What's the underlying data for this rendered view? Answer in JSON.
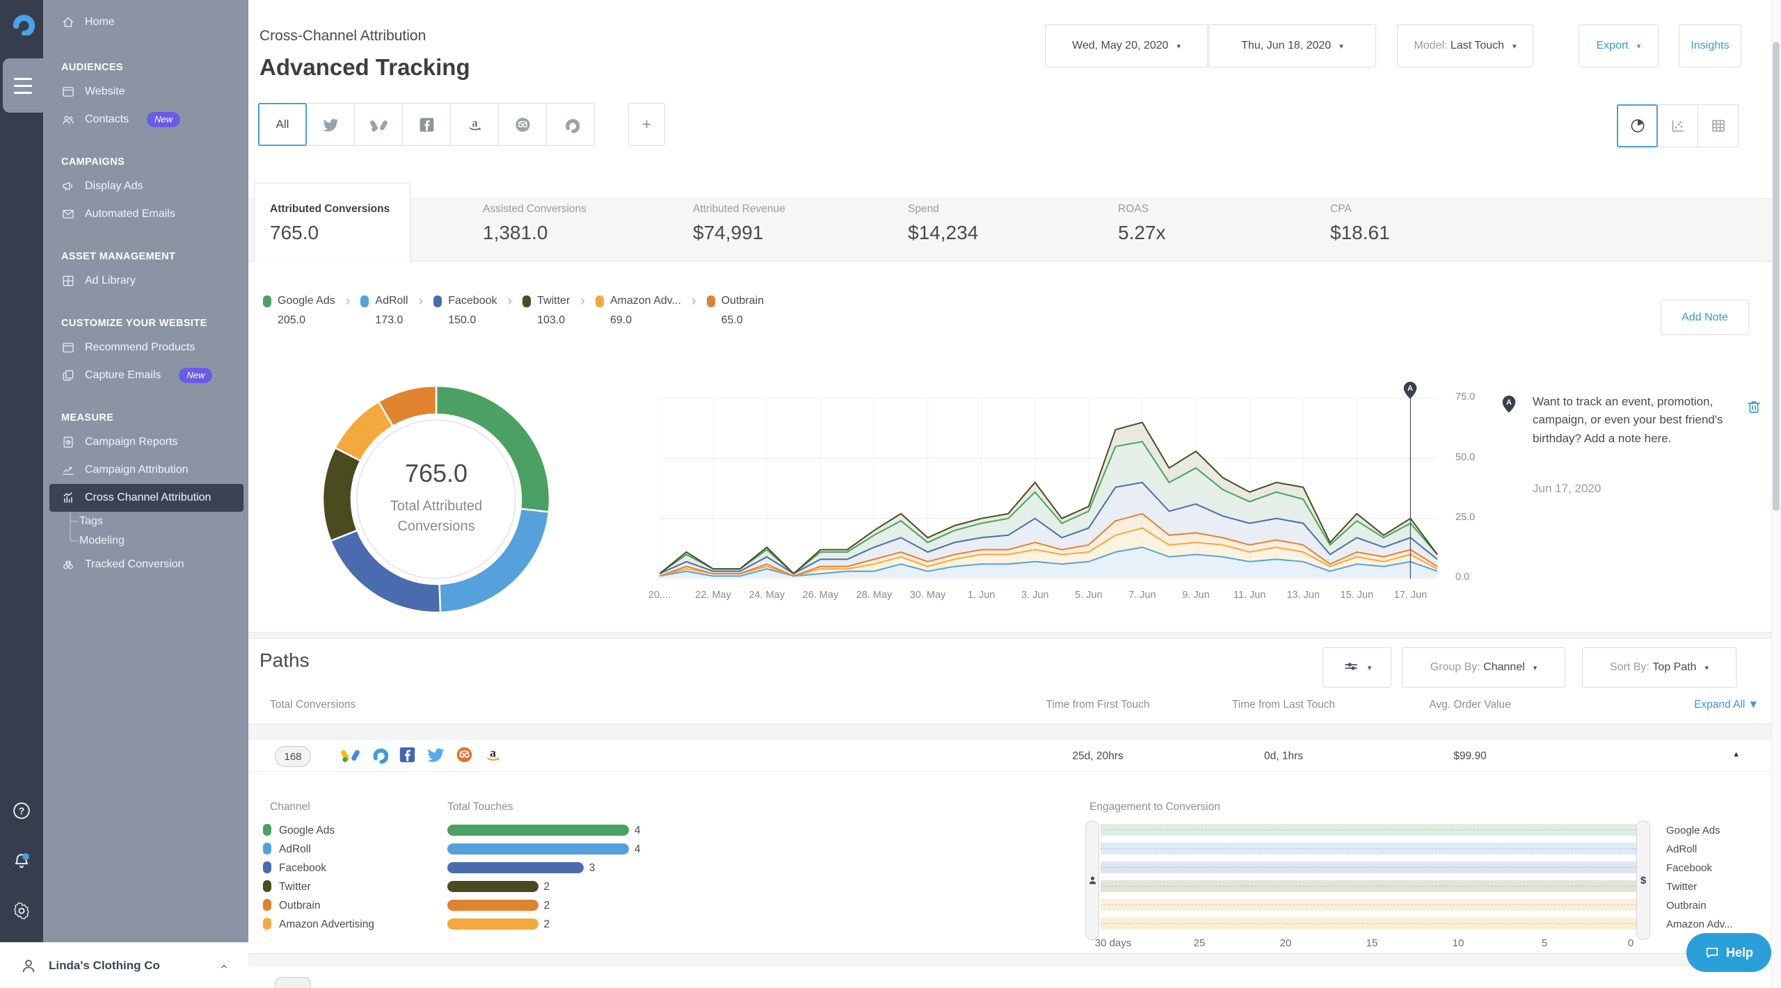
{
  "accent": "#3b96dd",
  "sidebar": {
    "sections": [
      {
        "header": null,
        "items": [
          {
            "icon": "home",
            "label": "Home"
          }
        ]
      },
      {
        "header": "AUDIENCES",
        "items": [
          {
            "icon": "browser-window",
            "label": "Website"
          },
          {
            "icon": "contacts",
            "label": "Contacts",
            "badge": "New"
          }
        ]
      },
      {
        "header": "CAMPAIGNS",
        "items": [
          {
            "icon": "megaphone",
            "label": "Display Ads"
          },
          {
            "icon": "envelope",
            "label": "Automated Emails"
          }
        ]
      },
      {
        "header": "ASSET MANAGEMENT",
        "items": [
          {
            "icon": "grid",
            "label": "Ad Library"
          }
        ]
      },
      {
        "header": "CUSTOMIZE YOUR WEBSITE",
        "items": [
          {
            "icon": "browser-window",
            "label": "Recommend Products"
          },
          {
            "icon": "pages",
            "label": "Capture Emails",
            "badge": "New"
          }
        ]
      },
      {
        "header": "MEASURE",
        "items": [
          {
            "icon": "report",
            "label": "Campaign Reports"
          },
          {
            "icon": "chart-line",
            "label": "Campaign Attribution"
          },
          {
            "icon": "bar-chart",
            "label": "Cross Channel Attribution",
            "selected": true,
            "children": [
              "Tags",
              "Modeling"
            ]
          },
          {
            "icon": "binoculars",
            "label": "Tracked Conversion"
          }
        ]
      }
    ],
    "footer_icons": [
      "help",
      "notifications",
      "settings"
    ],
    "account_name": "Linda's Clothing Co"
  },
  "header": {
    "subtitle": "Cross-Channel Attribution",
    "title": "Advanced Tracking",
    "date_start": "Wed, May 20, 2020",
    "date_end": "Thu, Jun 18, 2020",
    "model_label": "Model:",
    "model_value": "Last Touch",
    "export_label": "Export",
    "insights_label": "Insights"
  },
  "channel_tabs": {
    "all_label": "All",
    "icons": [
      "twitter",
      "google-ads",
      "facebook",
      "amazon",
      "outbrain",
      "adroll"
    ],
    "add_label": "+"
  },
  "view_toggles": [
    "pie-chart",
    "scatter-chart",
    "table-grid"
  ],
  "metrics": [
    {
      "label": "Attributed Conversions",
      "value": "765.0",
      "selected": true
    },
    {
      "label": "Assisted Conversions",
      "value": "1,381.0"
    },
    {
      "label": "Attributed Revenue",
      "value": "$74,991"
    },
    {
      "label": "Spend",
      "value": "$14,234"
    },
    {
      "label": "ROAS",
      "value": "5.27x"
    },
    {
      "label": "CPA",
      "value": "$18.61"
    }
  ],
  "breadcrumb": {
    "items": [
      {
        "name": "Google Ads",
        "value": "205.0",
        "color": "#4ba164"
      },
      {
        "name": "AdRoll",
        "value": "173.0",
        "color": "#55a1db"
      },
      {
        "name": "Facebook",
        "value": "150.0",
        "color": "#4a6bae"
      },
      {
        "name": "Twitter",
        "value": "103.0",
        "color": "#4b4b20"
      },
      {
        "name": "Amazon Adv...",
        "value": "69.0",
        "color": "#f4a93c"
      },
      {
        "name": "Outbrain",
        "value": "65.0",
        "color": "#e0832f"
      }
    ],
    "add_note_label": "Add Note"
  },
  "note": {
    "pin_label": "A",
    "text": "Want to track an event, promotion, campaign, or even your best friend's birthday? Add a note here.",
    "date": "Jun 17, 2020"
  },
  "paths": {
    "title": "Paths",
    "group_by_label": "Group By:",
    "group_by_value": "Channel",
    "sort_by_label": "Sort By:",
    "sort_by_value": "Top Path",
    "columns": {
      "c1": "Total Conversions",
      "c2": "Time from First Touch",
      "c3": "Time from Last Touch",
      "c4": "Avg. Order Value"
    },
    "expand_all_label": "Expand All ▼",
    "row": {
      "badge": "168",
      "icons": [
        "google-ads",
        "adroll",
        "facebook",
        "twitter",
        "outbrain",
        "amazon"
      ],
      "time_first": "25d, 20hrs",
      "time_last": "0d, 1hrs",
      "avg_order": "$99.90"
    },
    "expanded": {
      "channel_header": "Channel",
      "touches_header": "Total Touches",
      "engagement_title": "Engagement to Conversion"
    }
  },
  "help_label": "Help",
  "chart_data": [
    {
      "type": "pie",
      "title": "Total Attributed Conversions",
      "center_value": "765.0",
      "center_label": "Total Attributed Conversions",
      "labels": [
        "Google Ads",
        "AdRoll",
        "Facebook",
        "Twitter",
        "Amazon Advertising",
        "Outbrain"
      ],
      "values": [
        205,
        173,
        150,
        103,
        69,
        65
      ],
      "colors": [
        "#4ba164",
        "#55a1db",
        "#4a6bae",
        "#4b4b20",
        "#f4a93c",
        "#e0832f"
      ]
    },
    {
      "type": "area",
      "stacked": true,
      "x_count": 30,
      "x_tick_labels": [
        "20....",
        "22. May",
        "24. May",
        "26. May",
        "28. May",
        "30. May",
        "1. Jun",
        "3. Jun",
        "5. Jun",
        "7. Jun",
        "9. Jun",
        "11. Jun",
        "13. Jun",
        "15. Jun",
        "17. Jun"
      ],
      "y_ticks": [
        "0.0",
        "25.0",
        "50.0",
        "75.0"
      ],
      "ylim": [
        0,
        75
      ],
      "annotation": {
        "index": 28,
        "label": "A"
      },
      "series": [
        {
          "name": "AdRoll",
          "color": "#55a1db",
          "fill": "#e7f1fa",
          "values": [
            1,
            3,
            1,
            1,
            4,
            1,
            2,
            3,
            3,
            6,
            3,
            5,
            6,
            6,
            7,
            6,
            7,
            11,
            13,
            9,
            10,
            9,
            7,
            8,
            7,
            3,
            6,
            5,
            7,
            3
          ]
        },
        {
          "name": "Amazon Advertising",
          "color": "#f4a93c",
          "fill": "#fdf3e0",
          "values": [
            0,
            1,
            1,
            1,
            1,
            0,
            2,
            1,
            3,
            3,
            2,
            3,
            4,
            4,
            5,
            4,
            4,
            7,
            8,
            5,
            5,
            5,
            4,
            5,
            4,
            2,
            3,
            2,
            3,
            1
          ]
        },
        {
          "name": "Outbrain",
          "color": "#e0832f",
          "fill": "#fceede",
          "values": [
            0,
            1,
            0,
            0,
            1,
            0,
            1,
            1,
            2,
            2,
            2,
            2,
            2,
            2,
            3,
            2,
            3,
            6,
            6,
            4,
            4,
            3,
            3,
            3,
            3,
            1,
            2,
            2,
            2,
            1
          ]
        },
        {
          "name": "Facebook",
          "color": "#4a6bae",
          "fill": "#e9edf6",
          "values": [
            1,
            2,
            1,
            1,
            3,
            1,
            3,
            3,
            5,
            6,
            4,
            5,
            5,
            6,
            10,
            5,
            7,
            14,
            13,
            10,
            12,
            9,
            9,
            9,
            9,
            4,
            6,
            4,
            5,
            3
          ]
        },
        {
          "name": "Google Ads",
          "color": "#4ba164",
          "fill": "#e3efe7",
          "values": [
            0,
            3,
            1,
            1,
            3,
            0,
            3,
            3,
            5,
            7,
            4,
            5,
            6,
            7,
            11,
            6,
            7,
            17,
            17,
            12,
            15,
            11,
            9,
            11,
            10,
            4,
            7,
            4,
            6,
            2
          ]
        },
        {
          "name": "Twitter",
          "color": "#4b4b20",
          "fill": "#e9e9e1",
          "values": [
            0,
            1,
            0,
            0,
            1,
            0,
            1,
            1,
            2,
            3,
            2,
            2,
            2,
            2,
            4,
            2,
            2,
            7,
            8,
            6,
            7,
            5,
            4,
            4,
            5,
            1,
            3,
            1,
            2,
            0
          ]
        }
      ]
    },
    {
      "type": "bar",
      "title": "Total Touches",
      "categories": [
        "Google Ads",
        "AdRoll",
        "Facebook",
        "Twitter",
        "Outbrain",
        "Amazon Advertising"
      ],
      "values": [
        4,
        4,
        3,
        2,
        2,
        2
      ],
      "colors": [
        "#4ba164",
        "#55a1db",
        "#4a6bae",
        "#4b4b20",
        "#e0832f",
        "#f4a93c"
      ],
      "xlim": [
        0,
        4
      ]
    },
    {
      "type": "range-bars",
      "title": "Engagement to Conversion",
      "rows": [
        "Google Ads",
        "AdRoll",
        "Facebook",
        "Twitter",
        "Outbrain",
        "Amazon Adv..."
      ],
      "row_tints": [
        "#ddeee3",
        "#ddeaf7",
        "#dfe4f1",
        "#e2e2d7",
        "#faeedd",
        "#fbedd6"
      ],
      "x_labels": [
        "30 days",
        "25",
        "20",
        "15",
        "10",
        "5",
        "0"
      ],
      "range": [
        30,
        0
      ]
    }
  ]
}
